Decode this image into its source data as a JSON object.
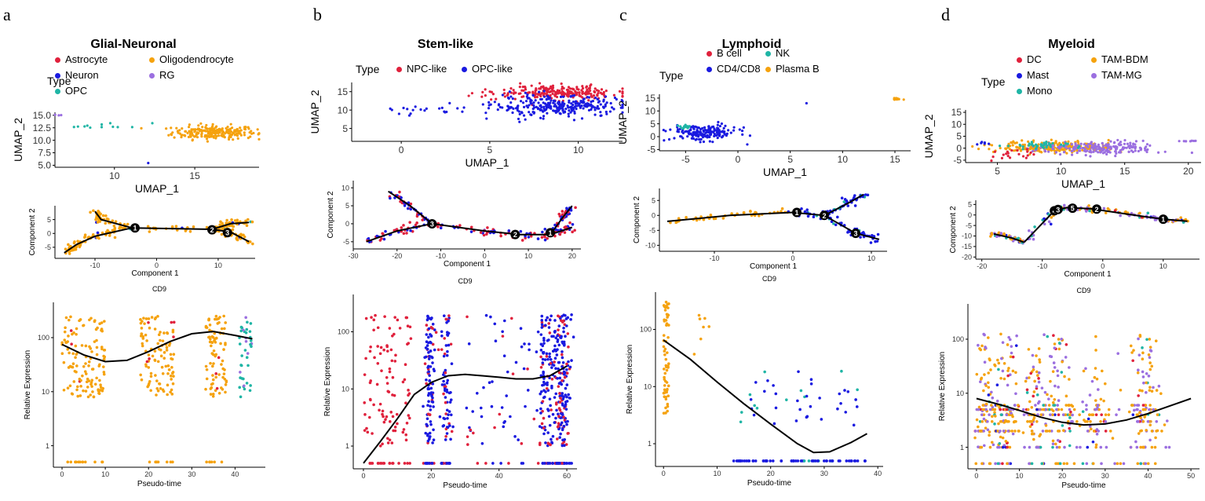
{
  "chart_data": [
    {
      "panel": "a",
      "title": "Glial-Neuronal",
      "legend": {
        "title": "Type",
        "entries": [
          {
            "name": "Astrocyte",
            "color": "#e0213c"
          },
          {
            "name": "Oligodendrocyte",
            "color": "#f5a20e"
          },
          {
            "name": "Neuron",
            "color": "#1a1ae0"
          },
          {
            "name": "RG",
            "color": "#9b6fe0"
          },
          {
            "name": "OPC",
            "color": "#1fb5a5"
          }
        ]
      },
      "umap": {
        "type": "scatter",
        "xlabel": "UMAP_1",
        "ylabel": "UMAP_2",
        "xlim": [
          6.3,
          19
        ],
        "ylim": [
          4.6,
          15.6
        ],
        "xticks": [
          10,
          15
        ],
        "yticks": [
          "5.0",
          "7.5",
          "10.0",
          "12.5",
          "15.0"
        ],
        "clusters": [
          {
            "type": "Oligodendrocyte",
            "cx": 16.2,
            "cy": 11.6,
            "sx": 1.3,
            "sy": 0.7,
            "n": 230
          },
          {
            "type": "OPC",
            "cx": 9.5,
            "cy": 12.9,
            "sx": 1.4,
            "sy": 0.3,
            "n": 12
          },
          {
            "type": "RG",
            "cx": 6.6,
            "cy": 15.1,
            "sx": 0.1,
            "sy": 0.05,
            "n": 3
          },
          {
            "type": "Neuron",
            "cx": 12.1,
            "cy": 5.4,
            "sx": 0.05,
            "sy": 0.05,
            "n": 1
          }
        ]
      },
      "trajectory": {
        "type": "scatter",
        "xlabel": "Component 1",
        "ylabel": "Component 2",
        "xlim": [
          -16.5,
          16
        ],
        "ylim": [
          -9,
          10
        ],
        "xticks": [
          -10,
          0,
          10
        ],
        "yticks": [
          -5,
          0,
          5
        ],
        "path": [
          [
            -15,
            -7
          ],
          [
            -13,
            -4
          ],
          [
            -10,
            -1
          ],
          [
            -4,
            2
          ],
          [
            9,
            1.5
          ],
          [
            12,
            0.5
          ],
          [
            15,
            -3
          ]
        ],
        "branches": [
          [
            [
              -10,
              8
            ],
            [
              -9,
              5
            ],
            [
              -4,
              2
            ]
          ],
          [
            [
              9,
              1.5
            ],
            [
              12,
              3.5
            ],
            [
              15,
              4
            ]
          ]
        ],
        "nodes": [
          {
            "label": "1",
            "x": -3.5,
            "y": 2
          },
          {
            "label": "2",
            "x": 9,
            "y": 1.3
          },
          {
            "label": "3",
            "x": 11.5,
            "y": 0.3
          }
        ]
      },
      "expression": {
        "type": "scatter",
        "title": "CD9",
        "xlabel": "Pseudo-time",
        "ylabel": "Relative Expression",
        "xlim": [
          -2,
          47
        ],
        "yticks": [
          "1",
          "10",
          "100"
        ],
        "xticks": [
          0,
          10,
          20,
          30,
          40
        ],
        "curve": [
          [
            0,
            75
          ],
          [
            5,
            48
          ],
          [
            10,
            36
          ],
          [
            15,
            38
          ],
          [
            20,
            55
          ],
          [
            25,
            85
          ],
          [
            30,
            118
          ],
          [
            35,
            130
          ],
          [
            40,
            110
          ],
          [
            44,
            95
          ]
        ]
      }
    },
    {
      "panel": "b",
      "title": "Stem-like",
      "legend": {
        "title": "Type",
        "entries": [
          {
            "name": "NPC-like",
            "color": "#e0213c"
          },
          {
            "name": "OPC-like",
            "color": "#1a1ae0"
          }
        ]
      },
      "umap": {
        "type": "scatter",
        "xlabel": "UMAP_1",
        "ylabel": "UMAP_2",
        "xlim": [
          -2.8,
          12.5
        ],
        "ylim": [
          1.5,
          17.5
        ],
        "xticks": [
          0,
          5,
          10
        ],
        "yticks": [
          5,
          10,
          15
        ],
        "clusters": [
          {
            "type": "NPC-like",
            "cx": 8.8,
            "cy": 14.8,
            "sx": 1.7,
            "sy": 0.9,
            "n": 240
          },
          {
            "type": "OPC-like",
            "cx": 8.8,
            "cy": 11,
            "sx": 1.8,
            "sy": 1.4,
            "n": 280
          },
          {
            "type": "OPC-like",
            "cx": 2.5,
            "cy": 10,
            "sx": 2.2,
            "sy": 0.9,
            "n": 28
          }
        ]
      },
      "trajectory": {
        "type": "scatter",
        "xlabel": "Component 1",
        "ylabel": "Component 2",
        "xlim": [
          -30,
          22
        ],
        "ylim": [
          -7,
          12
        ],
        "xticks": [
          -30,
          -20,
          -10,
          0,
          10,
          20
        ],
        "yticks": [
          -5,
          0,
          5,
          10
        ],
        "path": [
          [
            -27,
            -5
          ],
          [
            -20,
            -2
          ],
          [
            -12,
            0
          ],
          [
            0,
            -2
          ],
          [
            8,
            -3
          ],
          [
            15,
            -3
          ],
          [
            20,
            -1
          ]
        ],
        "branches": [
          [
            [
              -22,
              9
            ],
            [
              -17,
              5
            ],
            [
              -12,
              0
            ]
          ],
          [
            [
              15,
              -3
            ],
            [
              18,
              2
            ],
            [
              20,
              5
            ]
          ]
        ],
        "nodes": [
          {
            "label": "3",
            "x": -12,
            "y": 0
          },
          {
            "label": "2",
            "x": 7,
            "y": -3
          },
          {
            "label": "1",
            "x": 15,
            "y": -2.5
          }
        ]
      },
      "expression": {
        "type": "scatter",
        "title": "CD9",
        "xlabel": "Pseudo-time",
        "ylabel": "Relative Expression",
        "xlim": [
          -3,
          63
        ],
        "yticks": [
          "1",
          "10",
          "100"
        ],
        "xticks": [
          0,
          20,
          40,
          60
        ],
        "curve": [
          [
            0,
            0.5
          ],
          [
            5,
            1.2
          ],
          [
            10,
            3
          ],
          [
            15,
            8
          ],
          [
            20,
            13
          ],
          [
            25,
            17
          ],
          [
            30,
            18
          ],
          [
            35,
            17
          ],
          [
            40,
            16
          ],
          [
            45,
            15
          ],
          [
            50,
            15
          ],
          [
            55,
            17
          ],
          [
            60,
            25
          ]
        ]
      }
    },
    {
      "panel": "c",
      "title": "Lymphoid",
      "legend": {
        "title": "Type",
        "entries": [
          {
            "name": "B cell",
            "color": "#e0213c"
          },
          {
            "name": "NK",
            "color": "#1fb5a5"
          },
          {
            "name": "CD4/CD8",
            "color": "#1a1ae0"
          },
          {
            "name": "Plasma B",
            "color": "#f5a20e"
          }
        ]
      },
      "umap": {
        "type": "scatter",
        "xlabel": "UMAP_1",
        "ylabel": "UMAP_2",
        "xlim": [
          -7.5,
          16.5
        ],
        "ylim": [
          -5.5,
          16.5
        ],
        "xticks": [
          -5,
          0,
          5,
          10,
          15
        ],
        "yticks": [
          -5,
          0,
          5,
          10,
          15
        ],
        "clusters": [
          {
            "type": "CD4/CD8",
            "cx": -3.2,
            "cy": 1.5,
            "sx": 1.6,
            "sy": 1.5,
            "n": 180
          },
          {
            "type": "NK",
            "cx": -5.3,
            "cy": 3.8,
            "sx": 0.4,
            "sy": 0.4,
            "n": 12
          },
          {
            "type": "Plasma B",
            "cx": 15.2,
            "cy": 14.6,
            "sx": 0.15,
            "sy": 0.2,
            "n": 12
          },
          {
            "type": "CD4/CD8",
            "cx": 6.5,
            "cy": 13,
            "sx": 0.05,
            "sy": 0.05,
            "n": 1
          }
        ]
      },
      "trajectory": {
        "type": "scatter",
        "xlabel": "Component 1",
        "ylabel": "Component 2",
        "xlim": [
          -17,
          12
        ],
        "ylim": [
          -12,
          9
        ],
        "xticks": [
          -10,
          0,
          10
        ],
        "yticks": [
          -10,
          -5,
          0,
          5
        ],
        "path": [
          [
            -16,
            -2
          ],
          [
            -8,
            0
          ],
          [
            0,
            1
          ],
          [
            4,
            0
          ],
          [
            8,
            -6
          ],
          [
            11,
            -8
          ]
        ],
        "branches": [
          [
            [
              4,
              0
            ],
            [
              7,
              4
            ],
            [
              9,
              7
            ]
          ]
        ],
        "nodes": [
          {
            "label": "1",
            "x": 0.5,
            "y": 1
          },
          {
            "label": "2",
            "x": 4,
            "y": 0
          },
          {
            "label": "3",
            "x": 8,
            "y": -6
          }
        ]
      },
      "expression": {
        "type": "scatter",
        "title": "CD9",
        "xlabel": "Pseudo-time",
        "ylabel": "Relative Expression",
        "xlim": [
          -1.5,
          41
        ],
        "yticks": [
          "1",
          "10",
          "100"
        ],
        "xticks": [
          0,
          10,
          20,
          30,
          40
        ],
        "curve": [
          [
            0,
            65
          ],
          [
            5,
            30
          ],
          [
            10,
            12
          ],
          [
            15,
            5
          ],
          [
            20,
            2.2
          ],
          [
            25,
            1
          ],
          [
            28,
            0.7
          ],
          [
            31,
            0.72
          ],
          [
            35,
            1.05
          ],
          [
            38,
            1.5
          ]
        ]
      }
    },
    {
      "panel": "d",
      "title": "Myeloid",
      "legend": {
        "title": "Type",
        "entries": [
          {
            "name": "DC",
            "color": "#e0213c"
          },
          {
            "name": "TAM-BDM",
            "color": "#f5a20e"
          },
          {
            "name": "Mast",
            "color": "#1a1ae0"
          },
          {
            "name": "TAM-MG",
            "color": "#9b6fe0"
          },
          {
            "name": "Mono",
            "color": "#1fb5a5"
          }
        ]
      },
      "umap": {
        "type": "scatter",
        "xlabel": "UMAP_1",
        "ylabel": "UMAP_2",
        "xlim": [
          2.5,
          21
        ],
        "ylim": [
          -6,
          16
        ],
        "xticks": [
          5,
          10,
          15,
          20
        ],
        "yticks": [
          -5,
          0,
          5,
          10,
          15
        ],
        "clusters": [
          {
            "type": "TAM-BDM",
            "cx": 9.5,
            "cy": 0.5,
            "sx": 2.2,
            "sy": 1.2,
            "n": 240
          },
          {
            "type": "TAM-MG",
            "cx": 13,
            "cy": 0,
            "sx": 2.4,
            "sy": 1.4,
            "n": 200
          },
          {
            "type": "Mono",
            "cx": 8,
            "cy": 1,
            "sx": 1.2,
            "sy": 0.8,
            "n": 40
          },
          {
            "type": "DC",
            "cx": 6,
            "cy": -3,
            "sx": 1,
            "sy": 1.2,
            "n": 20
          },
          {
            "type": "Mast",
            "cx": 3.8,
            "cy": 2,
            "sx": 0.2,
            "sy": 0.4,
            "n": 6
          },
          {
            "type": "TAM-MG",
            "cx": 20,
            "cy": 3,
            "sx": 0.3,
            "sy": 0.1,
            "n": 8
          }
        ]
      },
      "trajectory": {
        "type": "scatter",
        "xlabel": "Component 1",
        "ylabel": "Component 2",
        "xlim": [
          -21,
          16
        ],
        "ylim": [
          -21,
          7
        ],
        "xticks": [
          -20,
          -10,
          0,
          10
        ],
        "yticks": [
          -20,
          -15,
          -10,
          -5,
          0,
          5
        ],
        "path": [
          [
            -13,
            -13
          ],
          [
            -8,
            2
          ],
          [
            -6,
            3.5
          ],
          [
            -2,
            3
          ],
          [
            5,
            0
          ],
          [
            10,
            -2
          ],
          [
            14,
            -3
          ]
        ],
        "branches": [
          [
            [
              -18,
              -9
            ],
            [
              -15,
              -11
            ],
            [
              -13,
              -13
            ]
          ]
        ],
        "nodes": [
          {
            "label": "4",
            "x": -8,
            "y": 2
          },
          {
            "label": "3",
            "x": -7.4,
            "y": 2.6
          },
          {
            "label": "5",
            "x": -5,
            "y": 3.2
          },
          {
            "label": "2",
            "x": -1,
            "y": 2.8
          },
          {
            "label": "1",
            "x": 10,
            "y": -2
          }
        ]
      },
      "expression": {
        "type": "scatter",
        "title": "CD9",
        "xlabel": "Pseudo-time",
        "ylabel": "Relative Expression",
        "xlim": [
          -2,
          52
        ],
        "yticks": [
          "1",
          "10",
          "100"
        ],
        "xticks": [
          0,
          10,
          20,
          30,
          40,
          50
        ],
        "curve": [
          [
            0,
            8
          ],
          [
            5,
            6.3
          ],
          [
            10,
            4.8
          ],
          [
            15,
            3.6
          ],
          [
            20,
            2.9
          ],
          [
            25,
            2.6
          ],
          [
            30,
            2.7
          ],
          [
            35,
            3.2
          ],
          [
            40,
            4.2
          ],
          [
            45,
            5.8
          ],
          [
            50,
            8
          ]
        ]
      }
    }
  ]
}
